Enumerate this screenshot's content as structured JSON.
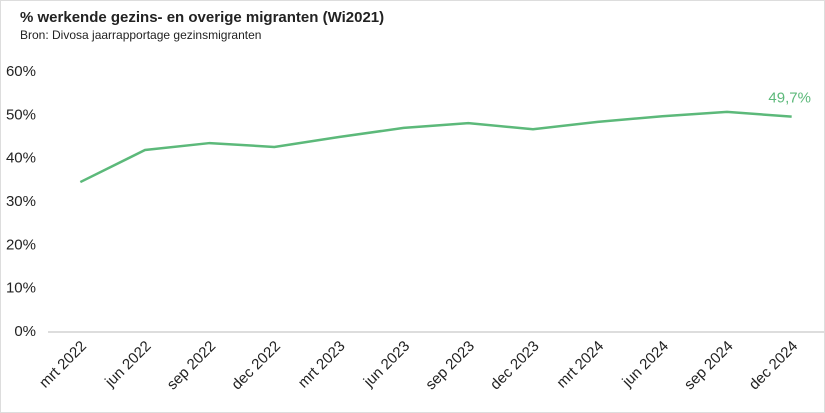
{
  "chart_data": {
    "type": "line",
    "title": "% werkende gezins- en overige migranten (Wi2021)",
    "subtitle": "Bron: Divosa jaarrapportage gezinsmigranten",
    "categories": [
      "mrt 2022",
      "jun 2022",
      "sep 2022",
      "dec 2022",
      "mrt 2023",
      "jun 2023",
      "sep 2023",
      "dec 2023",
      "mrt 2024",
      "jun 2024",
      "sep 2024",
      "dec 2024"
    ],
    "series": [
      {
        "color": "#5cb97a",
        "values": [
          34.6,
          42.0,
          43.6,
          42.7,
          45.0,
          47.1,
          48.2,
          46.8,
          48.5,
          49.8,
          50.8,
          49.7
        ],
        "value_labels": [
          null,
          null,
          null,
          null,
          null,
          null,
          null,
          null,
          null,
          null,
          null,
          "49,7%"
        ]
      }
    ],
    "ylim": [
      0,
      60
    ],
    "yticks": [
      {
        "value": 0,
        "label": "0%"
      },
      {
        "value": 10,
        "label": "10%"
      },
      {
        "value": 20,
        "label": "20%"
      },
      {
        "value": 30,
        "label": "30%"
      },
      {
        "value": 40,
        "label": "40%"
      },
      {
        "value": 50,
        "label": "50%"
      },
      {
        "value": 60,
        "label": "60%"
      }
    ],
    "grid": false
  }
}
